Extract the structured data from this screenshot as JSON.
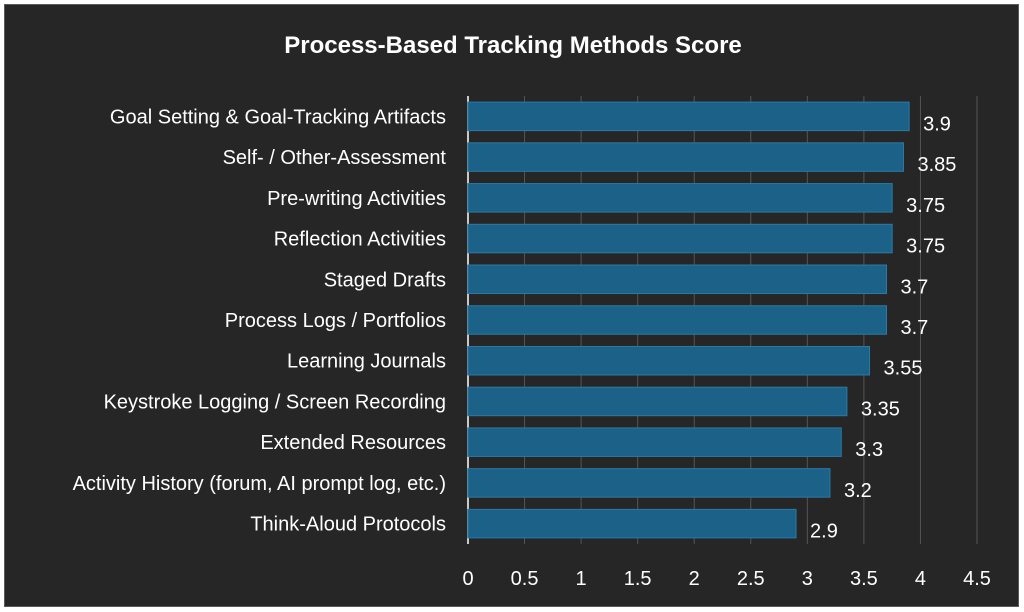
{
  "chart_data": {
    "type": "bar",
    "orientation": "horizontal",
    "title": "Process-Based Tracking Methods Score",
    "categories": [
      "Goal Setting & Goal-Tracking Artifacts",
      "Self- / Other-Assessment",
      "Pre-writing Activities",
      "Reflection Activities",
      "Staged Drafts",
      "Process Logs / Portfolios",
      "Learning Journals",
      "Keystroke Logging / Screen Recording",
      "Extended Resources",
      "Activity History (forum, AI prompt log, etc.)",
      "Think-Aloud Protocols"
    ],
    "values": [
      3.9,
      3.85,
      3.75,
      3.75,
      3.7,
      3.7,
      3.55,
      3.35,
      3.3,
      3.2,
      2.9
    ],
    "value_labels": [
      "3.9",
      "3.85",
      "3.75",
      "3.75",
      "3.7",
      "3.7",
      "3.55",
      "3.35",
      "3.3",
      "3.2",
      "2.9"
    ],
    "x_ticks": [
      "0",
      "0.5",
      "1",
      "1.5",
      "2",
      "2.5",
      "3",
      "3.5",
      "4",
      "4.5"
    ],
    "xlim": [
      0,
      4.5
    ],
    "xlabel": "",
    "ylabel": "",
    "grid": "vertical",
    "legend": "none",
    "colors": {
      "background": "#262626",
      "bar": "#1b6188",
      "bar_edge": "#2a7aa5",
      "grid": "#555555",
      "text": "#ffffff"
    }
  }
}
